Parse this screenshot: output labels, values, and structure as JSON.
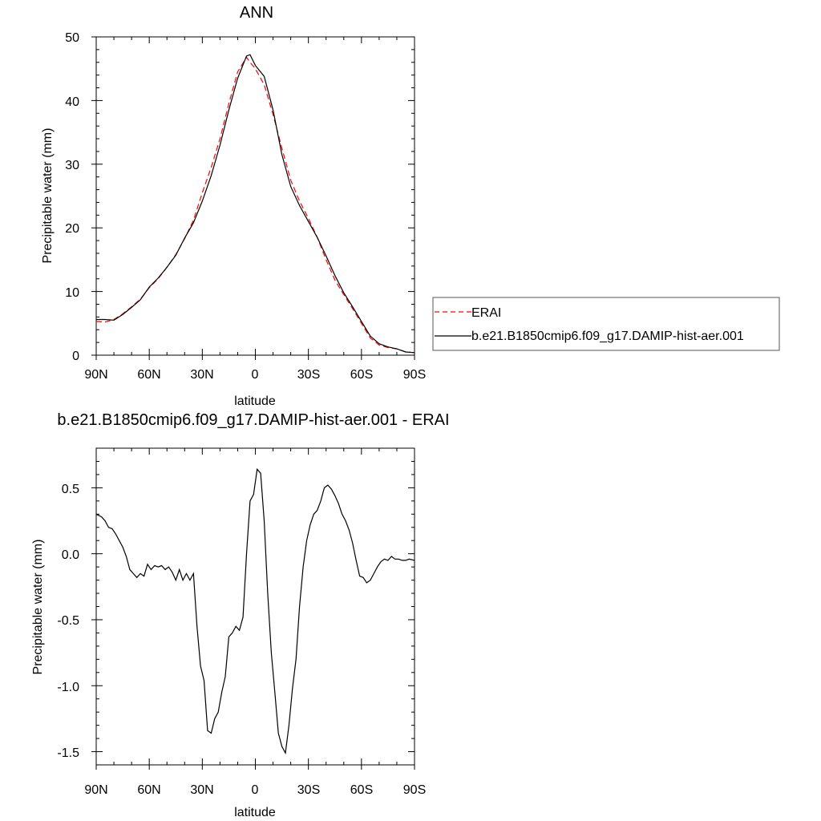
{
  "charts": [
    {
      "title": "ANN",
      "xlabel": "latitude",
      "ylabel": "Precipitable water (mm)",
      "xticklabels": [
        "90N",
        "60N",
        "30N",
        "0",
        "30S",
        "60S",
        "90S"
      ],
      "yticklabels": [
        "0",
        "10",
        "20",
        "30",
        "40",
        "50"
      ]
    },
    {
      "title": "b.e21.B1850cmip6.f09_g17.DAMIP-hist-aer.001 - ERAI",
      "xlabel": "latitude",
      "ylabel": "Precipitable water (mm)",
      "xticklabels": [
        "90N",
        "60N",
        "30N",
        "0",
        "30S",
        "60S",
        "90S"
      ],
      "yticklabels": [
        "-1.5",
        "-1.0",
        "-0.5",
        "0.0",
        "0.5"
      ]
    }
  ],
  "legend": {
    "items": [
      {
        "label": "ERAI",
        "color": "#ff0000",
        "dash": true
      },
      {
        "label": "b.e21.B1850cmip6.f09_g17.DAMIP-hist-aer.001",
        "color": "#000000",
        "dash": false
      }
    ]
  },
  "chart_data": [
    {
      "type": "line",
      "title": "ANN",
      "xlabel": "latitude",
      "ylabel": "Precipitable water (mm)",
      "xlim": [
        90,
        -90
      ],
      "ylim": [
        0,
        50
      ],
      "x_ticks": [
        90,
        60,
        30,
        0,
        -30,
        -60,
        -90
      ],
      "y_ticks": [
        0,
        10,
        20,
        30,
        40,
        50
      ],
      "legend_position": "right",
      "series": [
        {
          "name": "ERAI",
          "color": "#ff0000",
          "dashed": true,
          "x": [
            90,
            85,
            80,
            75,
            70,
            65,
            60,
            55,
            50,
            45,
            40,
            35,
            30,
            25,
            20,
            15,
            10,
            5,
            3,
            0,
            -5,
            -10,
            -15,
            -20,
            -25,
            -30,
            -35,
            -40,
            -45,
            -50,
            -55,
            -60,
            -65,
            -70,
            -75,
            -80,
            -85,
            -90
          ],
          "y": [
            5.3,
            5.2,
            5.6,
            6.5,
            7.6,
            8.8,
            10.6,
            12.0,
            13.8,
            15.8,
            18.3,
            21.2,
            25.5,
            29.5,
            34.0,
            39.5,
            44.5,
            46.8,
            46.0,
            45.0,
            42.5,
            37.8,
            32.5,
            27.5,
            24.2,
            21.5,
            18.5,
            15.0,
            11.8,
            9.5,
            7.3,
            5.0,
            2.7,
            1.6,
            1.2,
            1.0,
            0.5,
            0.4
          ]
        },
        {
          "name": "b.e21.B1850cmip6.f09_g17.DAMIP-hist-aer.001",
          "color": "#000000",
          "dashed": false,
          "x": [
            90,
            85,
            80,
            75,
            70,
            65,
            60,
            55,
            50,
            45,
            40,
            35,
            30,
            25,
            20,
            15,
            10,
            5,
            3,
            0,
            -5,
            -10,
            -15,
            -20,
            -25,
            -30,
            -35,
            -40,
            -45,
            -50,
            -55,
            -60,
            -65,
            -70,
            -75,
            -80,
            -85,
            -90
          ],
          "y": [
            5.6,
            5.6,
            5.5,
            6.4,
            7.5,
            8.7,
            10.7,
            12.1,
            13.8,
            15.7,
            18.4,
            20.8,
            24.2,
            28.2,
            33.0,
            38.5,
            43.5,
            47.0,
            47.2,
            45.5,
            43.8,
            38.5,
            31.5,
            26.5,
            23.5,
            21.0,
            18.5,
            15.6,
            12.5,
            9.8,
            7.6,
            5.3,
            3.0,
            1.8,
            1.3,
            1.0,
            0.5,
            0.4
          ]
        }
      ]
    },
    {
      "type": "line",
      "title": "b.e21.B1850cmip6.f09_g17.DAMIP-hist-aer.001 - ERAI",
      "xlabel": "latitude",
      "ylabel": "Precipitable water (mm)",
      "xlim": [
        90,
        -90
      ],
      "ylim": [
        -1.6,
        0.8
      ],
      "x_ticks": [
        90,
        60,
        30,
        0,
        -30,
        -60,
        -90
      ],
      "y_ticks": [
        -1.5,
        -1.0,
        -0.5,
        0.0,
        0.5
      ],
      "series": [
        {
          "x": [
            90,
            87,
            85,
            83,
            81,
            79,
            77,
            75,
            73,
            71,
            69,
            67,
            65,
            63,
            61,
            59,
            57,
            55,
            53,
            51,
            49,
            47,
            45,
            43,
            41,
            39,
            37,
            35,
            33,
            31,
            29,
            27,
            25,
            23,
            21,
            19,
            17,
            15,
            13,
            11,
            9,
            7,
            5,
            3,
            1,
            -1,
            -3,
            -5,
            -7,
            -9,
            -11,
            -13,
            -15,
            -17,
            -19,
            -21,
            -23,
            -25,
            -27,
            -29,
            -31,
            -33,
            -35,
            -37,
            -39,
            -41,
            -43,
            -45,
            -47,
            -49,
            -51,
            -53,
            -55,
            -57,
            -59,
            -61,
            -63,
            -65,
            -67,
            -69,
            -71,
            -73,
            -75,
            -77,
            -79,
            -81,
            -83,
            -85,
            -87,
            -90
          ],
          "y": [
            0.3,
            0.28,
            0.25,
            0.2,
            0.19,
            0.15,
            0.1,
            0.05,
            -0.02,
            -0.12,
            -0.15,
            -0.18,
            -0.15,
            -0.17,
            -0.08,
            -0.12,
            -0.09,
            -0.1,
            -0.09,
            -0.12,
            -0.1,
            -0.14,
            -0.2,
            -0.12,
            -0.2,
            -0.15,
            -0.2,
            -0.15,
            -0.55,
            -0.85,
            -0.96,
            -1.34,
            -1.36,
            -1.25,
            -1.2,
            -1.05,
            -0.93,
            -0.63,
            -0.6,
            -0.55,
            -0.58,
            -0.48,
            0.0,
            0.4,
            0.45,
            0.64,
            0.61,
            0.25,
            -0.3,
            -0.75,
            -1.05,
            -1.36,
            -1.46,
            -1.51,
            -1.3,
            -1.02,
            -0.8,
            -0.4,
            -0.1,
            0.1,
            0.22,
            0.3,
            0.33,
            0.4,
            0.5,
            0.52,
            0.49,
            0.44,
            0.38,
            0.3,
            0.25,
            0.18,
            0.08,
            -0.05,
            -0.17,
            -0.18,
            -0.22,
            -0.2,
            -0.15,
            -0.1,
            -0.06,
            -0.04,
            -0.05,
            -0.02,
            -0.04,
            -0.04,
            -0.05,
            -0.05,
            -0.04,
            -0.05
          ]
        }
      ]
    }
  ]
}
